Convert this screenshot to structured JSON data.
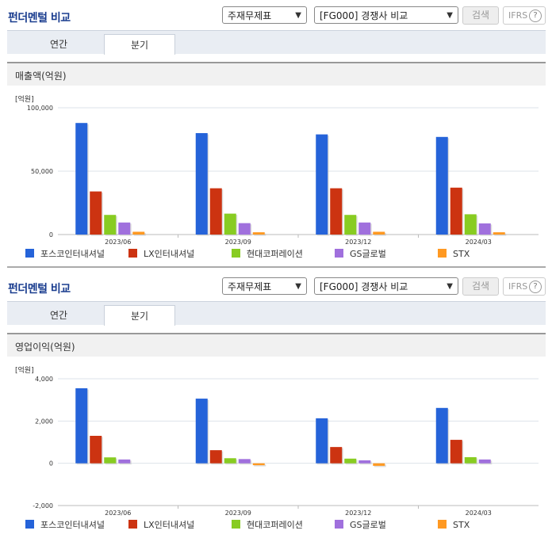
{
  "panels": [
    {
      "title": "펀더멘털 비교",
      "select1": "주재무제표",
      "select2": "[FG000] 경쟁사 비교",
      "search_label": "검색",
      "ifrs_label": "IFRS",
      "ifrs_help": "?",
      "tabs": [
        {
          "label": "연간"
        },
        {
          "label": "분기"
        }
      ],
      "active_tab": "분기",
      "chart_title": "매출액(억원)",
      "unit": "[억원]"
    },
    {
      "title": "펀더멘털 비교",
      "select1": "주재무제표",
      "select2": "[FG000] 경쟁사 비교",
      "search_label": "검색",
      "ifrs_label": "IFRS",
      "ifrs_help": "?",
      "tabs": [
        {
          "label": "연간"
        },
        {
          "label": "분기"
        }
      ],
      "active_tab": "분기",
      "chart_title": "영업이익(억원)",
      "unit": "[억원]"
    }
  ],
  "colors": {
    "series": [
      "#2563d9",
      "#cc3311",
      "#88cc22",
      "#a070dd",
      "#ff9922"
    ],
    "title": "#1a3d8f",
    "tabbar": "#e9edf3"
  },
  "chart_data": [
    {
      "type": "bar",
      "title": "매출액(억원)",
      "ylabel": "[억원]",
      "categories": [
        "2023/06",
        "2023/09",
        "2023/12",
        "2024/03"
      ],
      "ylim": [
        0,
        100000
      ],
      "yticks": [
        0,
        50000,
        100000
      ],
      "ytick_labels": [
        "0",
        "50,000",
        "100,000"
      ],
      "series": [
        {
          "name": "포스코인터내셔널",
          "values": [
            88000,
            80000,
            79000,
            77000
          ]
        },
        {
          "name": "LX인터내셔널",
          "values": [
            34000,
            36500,
            36500,
            37000
          ]
        },
        {
          "name": "현대코퍼레이션",
          "values": [
            15500,
            16500,
            15500,
            16000
          ]
        },
        {
          "name": "GS글로벌",
          "values": [
            9500,
            9000,
            9500,
            8800
          ]
        },
        {
          "name": "STX",
          "values": [
            2200,
            1800,
            2200,
            1800
          ]
        }
      ]
    },
    {
      "type": "bar",
      "title": "영업이익(억원)",
      "ylabel": "[억원]",
      "categories": [
        "2023/06",
        "2023/09",
        "2023/12",
        "2024/03"
      ],
      "ylim": [
        -2000,
        4000
      ],
      "yticks": [
        -2000,
        0,
        2000,
        4000
      ],
      "ytick_labels": [
        "-2,000",
        "0",
        "2,000",
        "4,000"
      ],
      "series": [
        {
          "name": "포스코인터내셔널",
          "values": [
            3550,
            3060,
            2130,
            2620
          ]
        },
        {
          "name": "LX인터내셔널",
          "values": [
            1300,
            620,
            770,
            1110
          ]
        },
        {
          "name": "현대코퍼레이션",
          "values": [
            280,
            240,
            220,
            290
          ]
        },
        {
          "name": "GS글로벌",
          "values": [
            180,
            200,
            140,
            180
          ]
        },
        {
          "name": "STX",
          "values": [
            0,
            -90,
            -120,
            0
          ]
        }
      ]
    }
  ]
}
